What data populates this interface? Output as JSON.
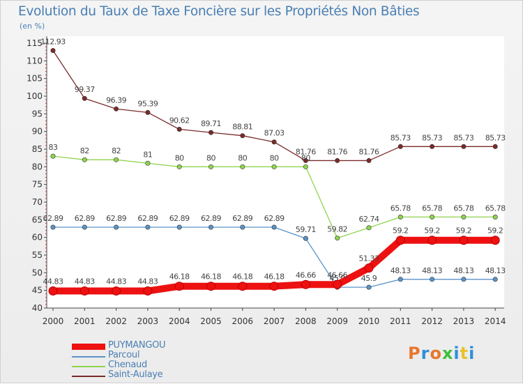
{
  "title": "Evolution du Taux de Taxe Foncière sur les Propriétés Non Bâties",
  "unit_label": "(en %)",
  "brand": {
    "text": "Proxiti",
    "colors": [
      "#e8772e",
      "#2f8fd8",
      "#e8772e",
      "#3cbf3c",
      "#2f8fd8",
      "#e8c22e",
      "#2f8fd8"
    ]
  },
  "chart_data": {
    "type": "line",
    "title": "Evolution du Taux de Taxe Foncière sur les Propriétés Non Bâties",
    "ylabel": "(en %)",
    "xlabel": "",
    "categories": [
      "2000",
      "2001",
      "2002",
      "2003",
      "2004",
      "2005",
      "2006",
      "2007",
      "2008",
      "2009",
      "2010",
      "2011",
      "2012",
      "2013",
      "2014"
    ],
    "ylim": [
      40,
      115
    ],
    "yticks": [
      40,
      45,
      50,
      55,
      60,
      65,
      70,
      75,
      80,
      85,
      90,
      95,
      100,
      105,
      110,
      115
    ],
    "grid": false,
    "legend_position": "bottom-left",
    "series": [
      {
        "name": "Saint-Aulaye",
        "color": "#7a2a2a",
        "style": "thin",
        "values": [
          112.93,
          99.37,
          96.39,
          95.39,
          90.62,
          89.71,
          88.81,
          87.03,
          81.76,
          81.76,
          81.76,
          85.73,
          85.73,
          85.73,
          85.73
        ],
        "labels": [
          "112.93",
          "99.37",
          "96.39",
          "95.39",
          "90.62",
          "89.71",
          "88.81",
          "87.03",
          "81.76",
          "81.76",
          "81.76",
          "85.73",
          "85.73",
          "85.73",
          "85.73"
        ]
      },
      {
        "name": "Chenaud",
        "color": "#8fd44f",
        "style": "thin",
        "values": [
          83,
          82,
          82,
          81,
          80,
          80,
          80,
          80,
          80,
          59.82,
          62.74,
          65.78,
          65.78,
          65.78,
          65.78
        ],
        "labels": [
          "83",
          "82",
          "82",
          "81",
          "80",
          "80",
          "80",
          "80",
          "80",
          "59.82",
          "62.74",
          "65.78",
          "65.78",
          "65.78",
          "65.78"
        ]
      },
      {
        "name": "Parcoul",
        "color": "#5b93c8",
        "style": "thin",
        "values": [
          62.89,
          62.89,
          62.89,
          62.89,
          62.89,
          62.89,
          62.89,
          62.89,
          59.71,
          45.9,
          45.9,
          48.13,
          48.13,
          48.13,
          48.13
        ],
        "labels": [
          "62.89",
          "62.89",
          "62.89",
          "62.89",
          "62.89",
          "62.89",
          "62.89",
          "62.89",
          "59.71",
          "45.9",
          "45.9",
          "48.13",
          "48.13",
          "48.13",
          "48.13"
        ]
      },
      {
        "name": "PUYMANGOU",
        "color": "#ee1111",
        "style": "thick",
        "values": [
          44.83,
          44.83,
          44.83,
          44.83,
          46.18,
          46.18,
          46.18,
          46.18,
          46.66,
          46.66,
          51.33,
          59.2,
          59.2,
          59.2,
          59.2
        ],
        "labels": [
          "44.83",
          "44.83",
          "44.83",
          "44.83",
          "46.18",
          "46.18",
          "46.18",
          "46.18",
          "46.66",
          "46.66",
          "51.33",
          "59.2",
          "59.2",
          "59.2",
          "59.2"
        ]
      }
    ],
    "legend": [
      "PUYMANGOU",
      "Parcoul",
      "Chenaud",
      "Saint-Aulaye"
    ]
  }
}
